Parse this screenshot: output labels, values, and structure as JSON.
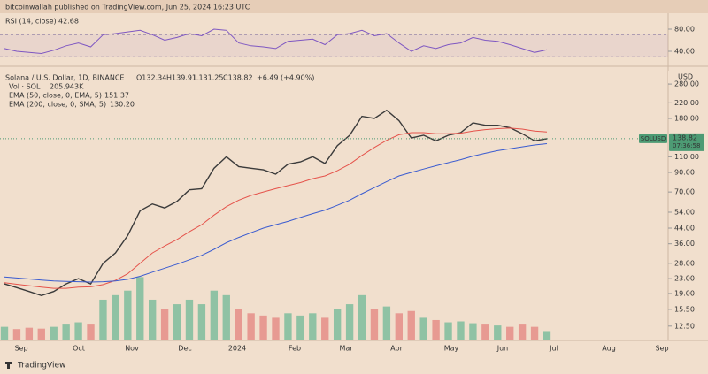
{
  "header": {
    "publisher": "bitcoinwallah published on TradingView.com, Jun 25, 2024 16:23 UTC",
    "footer": "TradingView"
  },
  "chart_data": [
    {
      "type": "line",
      "title": "RSI (14, close)",
      "color": "#7e57c2",
      "values": [
        45,
        40,
        38,
        36,
        42,
        50,
        55,
        48,
        70,
        72,
        75,
        78,
        70,
        60,
        65,
        72,
        68,
        80,
        78,
        55,
        50,
        48,
        45,
        58,
        60,
        62,
        52,
        70,
        72,
        78,
        68,
        72,
        55,
        40,
        50,
        45,
        52,
        55,
        65,
        60,
        58,
        52,
        45,
        38,
        42.68
      ],
      "ylim": [
        17.6,
        104
      ],
      "yticks": [
        {
          "value": 80,
          "label": "80.00"
        },
        {
          "value": 40,
          "label": "40.00"
        }
      ],
      "bands": [
        70,
        30
      ]
    },
    {
      "type": "line",
      "title": "Solana / U.S. Dollar, 1D, BINANCE",
      "ohlc": [
        "O132.34",
        "H139.91",
        "L131.25",
        "C138.82"
      ],
      "change": "+6.49 (+4.90%)",
      "currency": "USD",
      "symbol_tag": "SOLUSD",
      "last_price": 138.82,
      "countdown": "07:36:58",
      "log_scale": true,
      "ylim": [
        10.4,
        340
      ],
      "yticks": [
        {
          "value": 280,
          "label": "280.00"
        },
        {
          "value": 220,
          "label": "220.00"
        },
        {
          "value": 180,
          "label": "180.00"
        },
        {
          "value": 110,
          "label": "110.00"
        },
        {
          "value": 90,
          "label": "90.00"
        },
        {
          "value": 70,
          "label": "70.00"
        },
        {
          "value": 54,
          "label": "54.00"
        },
        {
          "value": 44,
          "label": "44.00"
        },
        {
          "value": 36,
          "label": "36.00"
        },
        {
          "value": 28,
          "label": "28.00"
        },
        {
          "value": 23,
          "label": "23.00"
        },
        {
          "value": 19,
          "label": "19.00"
        },
        {
          "value": 15.5,
          "label": "15.50"
        },
        {
          "value": 12.5,
          "label": "12.50"
        }
      ],
      "x_labels": [
        "Sep",
        "Oct",
        "Nov",
        "Dec",
        "2024",
        "Feb",
        "Mar",
        "Apr",
        "May",
        "Jun",
        "Jul",
        "Aug",
        "Sep"
      ],
      "series": [
        {
          "color": "#3b3b3b",
          "values": [
            21.5,
            20.5,
            19.5,
            18.5,
            19.5,
            21.5,
            23,
            21.5,
            28,
            32,
            40,
            55,
            60,
            57,
            62,
            72,
            73,
            95,
            110,
            97,
            95,
            93,
            88,
            100,
            103,
            110,
            101,
            127,
            145,
            185,
            180,
            200,
            175,
            140,
            145,
            135,
            145,
            150,
            170,
            165,
            165,
            160,
            148,
            135,
            138.82
          ]
        },
        {
          "name": "EMA (50, close, 0, EMA, 5)",
          "color": "#e5534b",
          "values": [
            21.8,
            21.4,
            21,
            20.6,
            20.3,
            20.3,
            20.6,
            20.7,
            21.3,
            22.5,
            24.5,
            28,
            32,
            35,
            38,
            42,
            46,
            52,
            58,
            63,
            67,
            70,
            73,
            76,
            79,
            83,
            86,
            92,
            100,
            112,
            124,
            136,
            146,
            150,
            150,
            148,
            148,
            149,
            153,
            156,
            158,
            159,
            157,
            153,
            151.37
          ]
        },
        {
          "name": "EMA (200, close, 0, SMA, 5)",
          "color": "#3a5bd0",
          "last_label": "130.20",
          "values": [
            23.5,
            23.2,
            22.9,
            22.6,
            22.3,
            22.2,
            22.1,
            22,
            22.1,
            22.3,
            22.8,
            23.7,
            25,
            26.3,
            27.7,
            29.3,
            31,
            33.5,
            36.5,
            39,
            41.5,
            44,
            46,
            48,
            50.5,
            53,
            55.5,
            59,
            63,
            68.5,
            74,
            80,
            86,
            90,
            94,
            98,
            102,
            106,
            111,
            115,
            119,
            122,
            125,
            128,
            130.2
          ]
        }
      ],
      "volume": {
        "name": "Vol · SOL",
        "last_label": "205.943K",
        "ylim": [
          0,
          6000
        ],
        "up_color": "#8fc2a4",
        "down_color": "#e79a92",
        "values": [
          300,
          250,
          280,
          260,
          300,
          350,
          400,
          350,
          900,
          1000,
          1100,
          1400,
          900,
          700,
          800,
          900,
          800,
          1100,
          1000,
          700,
          600,
          550,
          500,
          600,
          550,
          600,
          500,
          700,
          800,
          1000,
          700,
          750,
          600,
          650,
          500,
          450,
          400,
          420,
          380,
          350,
          330,
          300,
          350,
          300,
          205.943
        ]
      }
    }
  ]
}
